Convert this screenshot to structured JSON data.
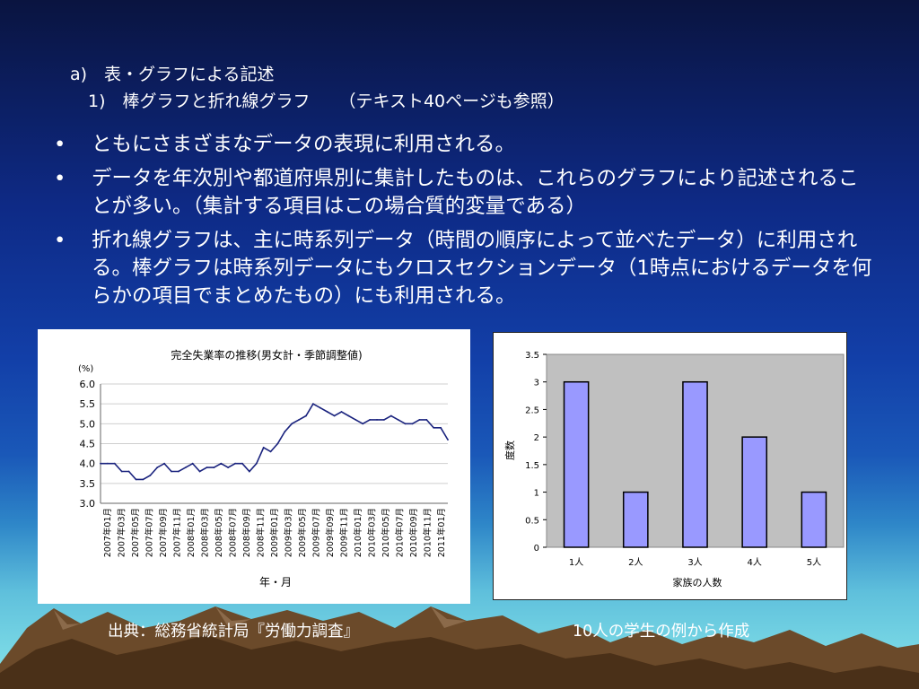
{
  "slide": {
    "heading_a": "a)　表・グラフによる記述",
    "heading_sub": "1)　棒グラフと折れ線グラフ",
    "heading_note": "（テキスト40ページも参照）",
    "bullets": [
      "ともにさまざまなデータの表現に利用される。",
      "データを年次別や都道府県別に集計したものは、これらのグラフにより記述されることが多い。（集計する項目はこの場合質的変量である）",
      "折れ線グラフは、主に時系列データ（時間の順序によって並べたデータ）に利用される。棒グラフは時系列データにもクロスセクションデータ（1時点におけるデータを何らかの項目でまとめたもの）にも利用される。"
    ],
    "caption_left": "出典：総務省統計局『労働力調査』",
    "caption_right": "10人の学生の例から作成"
  },
  "chart_data": [
    {
      "type": "line",
      "title": "完全失業率の推移(男女計・季節調整値)",
      "yunit": "(%)",
      "xlabel": "年・月",
      "ylabel": "",
      "ylim": [
        3.0,
        6.0
      ],
      "yticks": [
        "6.0",
        "5.5",
        "5.0",
        "4.5",
        "4.0",
        "3.5",
        "3.0"
      ],
      "grid": true,
      "x_tick_labels": [
        "2007年01月",
        "2007年03月",
        "2007年05月",
        "2007年07月",
        "2007年09月",
        "2007年11月",
        "2008年01月",
        "2008年03月",
        "2008年05月",
        "2008年07月",
        "2008年09月",
        "2008年11月",
        "2009年01月",
        "2009年03月",
        "2009年05月",
        "2009年07月",
        "2009年09月",
        "2009年11月",
        "2010年01月",
        "2010年03月",
        "2010年05月",
        "2010年07月",
        "2010年09月",
        "2010年11月",
        "2011年01月"
      ],
      "values": [
        4.0,
        4.0,
        4.0,
        3.8,
        3.8,
        3.6,
        3.6,
        3.7,
        3.9,
        4.0,
        3.8,
        3.8,
        3.9,
        4.0,
        3.8,
        3.9,
        3.9,
        4.0,
        3.9,
        4.0,
        4.0,
        3.8,
        4.0,
        4.4,
        4.3,
        4.5,
        4.8,
        5.0,
        5.1,
        5.2,
        5.5,
        5.4,
        5.3,
        5.2,
        5.3,
        5.2,
        5.1,
        5.0,
        5.1,
        5.1,
        5.1,
        5.2,
        5.1,
        5.0,
        5.0,
        5.1,
        5.1,
        4.9,
        4.9,
        4.6
      ],
      "color": "#1a237e"
    },
    {
      "type": "bar",
      "categories": [
        "1人",
        "2人",
        "3人",
        "4人",
        "5人"
      ],
      "values": [
        3,
        1,
        3,
        2,
        1
      ],
      "xlabel": "家族の人数",
      "ylabel": "度数",
      "ylim": [
        0,
        3.5
      ],
      "yticks": [
        "3.5",
        "3",
        "2.5",
        "2",
        "1.5",
        "1",
        "0.5",
        "0"
      ],
      "bar_color": "#9999ff",
      "plot_bg": "#c0c0c0"
    }
  ]
}
